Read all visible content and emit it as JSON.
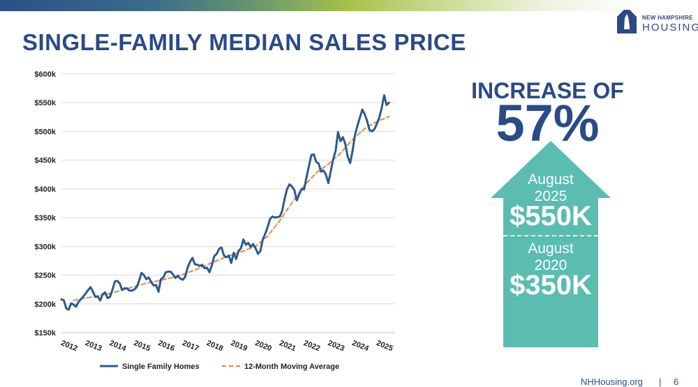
{
  "page_title": "SINGLE-FAMILY MEDIAN SALES PRICE",
  "logo": {
    "line1": "NEW HAMPSHIRE",
    "line2": "HOUSING"
  },
  "callout": {
    "label": "INCREASE OF",
    "value": "57%",
    "top_period_month": "August",
    "top_period_year": "2025",
    "top_value": "$550K",
    "bottom_period_month": "August",
    "bottom_period_year": "2020",
    "bottom_value": "$350K"
  },
  "footer": {
    "site": "NHHousing.org",
    "separator": "|",
    "page_number": "6"
  },
  "colors": {
    "brand": "#2b4a86",
    "accent": "#5bbcb0",
    "trend": "#e8844a",
    "grid": "#d9d9d9"
  },
  "chart_data": {
    "type": "line",
    "title": "",
    "xlabel": "",
    "ylabel": "",
    "ylim": [
      150000,
      600000
    ],
    "xlim": [
      2012,
      2025.75
    ],
    "grid": "horizontal",
    "legend_position": "bottom",
    "y_ticks": [
      {
        "value": 150000,
        "label": "$150k"
      },
      {
        "value": 200000,
        "label": "$200k"
      },
      {
        "value": 250000,
        "label": "$250k"
      },
      {
        "value": 300000,
        "label": "$300k"
      },
      {
        "value": 350000,
        "label": "$350k"
      },
      {
        "value": 400000,
        "label": "$400k"
      },
      {
        "value": 450000,
        "label": "$450k"
      },
      {
        "value": 500000,
        "label": "$500k"
      },
      {
        "value": 550000,
        "label": "$550k"
      },
      {
        "value": 600000,
        "label": "$600k"
      }
    ],
    "x_ticks": [
      {
        "value": 2012,
        "label": "2012"
      },
      {
        "value": 2013,
        "label": "2013"
      },
      {
        "value": 2014,
        "label": "2014"
      },
      {
        "value": 2015,
        "label": "2015"
      },
      {
        "value": 2016,
        "label": "2016"
      },
      {
        "value": 2017,
        "label": "2017"
      },
      {
        "value": 2018,
        "label": "2018"
      },
      {
        "value": 2019,
        "label": "2019"
      },
      {
        "value": 2020,
        "label": "2020"
      },
      {
        "value": 2021,
        "label": "2021"
      },
      {
        "value": 2022,
        "label": "2022"
      },
      {
        "value": 2023,
        "label": "2023"
      },
      {
        "value": 2024,
        "label": "2024"
      },
      {
        "value": 2025,
        "label": "2025"
      }
    ],
    "series": [
      {
        "name": "Single Family Homes",
        "style": "solid",
        "color": "#2b5a8e",
        "points": [
          [
            2012.0,
            208000
          ],
          [
            2012.1,
            206000
          ],
          [
            2012.2,
            192000
          ],
          [
            2012.3,
            190000
          ],
          [
            2012.4,
            201000
          ],
          [
            2012.5,
            199000
          ],
          [
            2012.6,
            195000
          ],
          [
            2012.7,
            203000
          ],
          [
            2012.8,
            208000
          ],
          [
            2012.9,
            213000
          ],
          [
            2013.0,
            218000
          ],
          [
            2013.1,
            224000
          ],
          [
            2013.2,
            229000
          ],
          [
            2013.3,
            221000
          ],
          [
            2013.4,
            212000
          ],
          [
            2013.5,
            213000
          ],
          [
            2013.6,
            206000
          ],
          [
            2013.7,
            217000
          ],
          [
            2013.8,
            220000
          ],
          [
            2013.9,
            210000
          ],
          [
            2014.0,
            212000
          ],
          [
            2014.1,
            224000
          ],
          [
            2014.2,
            239000
          ],
          [
            2014.3,
            240000
          ],
          [
            2014.4,
            236000
          ],
          [
            2014.5,
            224000
          ],
          [
            2014.6,
            227000
          ],
          [
            2014.7,
            227000
          ],
          [
            2014.8,
            223000
          ],
          [
            2014.9,
            223000
          ],
          [
            2015.0,
            225000
          ],
          [
            2015.1,
            229000
          ],
          [
            2015.2,
            240000
          ],
          [
            2015.3,
            254000
          ],
          [
            2015.4,
            250000
          ],
          [
            2015.5,
            243000
          ],
          [
            2015.6,
            246000
          ],
          [
            2015.7,
            238000
          ],
          [
            2015.8,
            232000
          ],
          [
            2015.9,
            233000
          ],
          [
            2016.0,
            221000
          ],
          [
            2016.1,
            243000
          ],
          [
            2016.2,
            246000
          ],
          [
            2016.3,
            255000
          ],
          [
            2016.4,
            256000
          ],
          [
            2016.5,
            256000
          ],
          [
            2016.6,
            251000
          ],
          [
            2016.7,
            245000
          ],
          [
            2016.8,
            249000
          ],
          [
            2016.9,
            244000
          ],
          [
            2017.0,
            242000
          ],
          [
            2017.1,
            247000
          ],
          [
            2017.2,
            263000
          ],
          [
            2017.3,
            273000
          ],
          [
            2017.4,
            280000
          ],
          [
            2017.5,
            269000
          ],
          [
            2017.6,
            268000
          ],
          [
            2017.7,
            266000
          ],
          [
            2017.8,
            268000
          ],
          [
            2017.9,
            262000
          ],
          [
            2018.0,
            263000
          ],
          [
            2018.1,
            255000
          ],
          [
            2018.2,
            267000
          ],
          [
            2018.3,
            283000
          ],
          [
            2018.4,
            287000
          ],
          [
            2018.5,
            296000
          ],
          [
            2018.6,
            298000
          ],
          [
            2018.7,
            284000
          ],
          [
            2018.8,
            281000
          ],
          [
            2018.9,
            284000
          ],
          [
            2019.0,
            271000
          ],
          [
            2019.1,
            289000
          ],
          [
            2019.2,
            278000
          ],
          [
            2019.3,
            292000
          ],
          [
            2019.4,
            297000
          ],
          [
            2019.5,
            312000
          ],
          [
            2019.6,
            303000
          ],
          [
            2019.7,
            306000
          ],
          [
            2019.8,
            299000
          ],
          [
            2019.9,
            304000
          ],
          [
            2020.0,
            297000
          ],
          [
            2020.1,
            287000
          ],
          [
            2020.2,
            292000
          ],
          [
            2020.3,
            312000
          ],
          [
            2020.4,
            322000
          ],
          [
            2020.5,
            334000
          ],
          [
            2020.6,
            348000
          ],
          [
            2020.7,
            352000
          ],
          [
            2020.8,
            350000
          ],
          [
            2020.9,
            351000
          ],
          [
            2021.0,
            352000
          ],
          [
            2021.1,
            362000
          ],
          [
            2021.2,
            383000
          ],
          [
            2021.3,
            400000
          ],
          [
            2021.4,
            408000
          ],
          [
            2021.5,
            404000
          ],
          [
            2021.6,
            398000
          ],
          [
            2021.7,
            380000
          ],
          [
            2021.8,
            391000
          ],
          [
            2021.9,
            400000
          ],
          [
            2022.0,
            399000
          ],
          [
            2022.1,
            420000
          ],
          [
            2022.2,
            440000
          ],
          [
            2022.3,
            459000
          ],
          [
            2022.4,
            460000
          ],
          [
            2022.5,
            447000
          ],
          [
            2022.6,
            444000
          ],
          [
            2022.7,
            430000
          ],
          [
            2022.8,
            432000
          ],
          [
            2022.9,
            425000
          ],
          [
            2023.0,
            410000
          ],
          [
            2023.1,
            431000
          ],
          [
            2023.2,
            452000
          ],
          [
            2023.3,
            466000
          ],
          [
            2023.4,
            499000
          ],
          [
            2023.5,
            483000
          ],
          [
            2023.6,
            490000
          ],
          [
            2023.7,
            478000
          ],
          [
            2023.8,
            456000
          ],
          [
            2023.9,
            445000
          ],
          [
            2024.0,
            467000
          ],
          [
            2024.1,
            494000
          ],
          [
            2024.2,
            510000
          ],
          [
            2024.3,
            524000
          ],
          [
            2024.4,
            538000
          ],
          [
            2024.5,
            530000
          ],
          [
            2024.6,
            518000
          ],
          [
            2024.7,
            502000
          ],
          [
            2024.8,
            500000
          ],
          [
            2024.9,
            504000
          ],
          [
            2025.0,
            513000
          ],
          [
            2025.1,
            524000
          ],
          [
            2025.2,
            541000
          ],
          [
            2025.3,
            563000
          ],
          [
            2025.4,
            546000
          ],
          [
            2025.5,
            550000
          ]
        ]
      },
      {
        "name": "12-Month Moving Average",
        "style": "dashed",
        "color": "#e8844a",
        "points": [
          [
            2012.5,
            206000
          ],
          [
            2013.0,
            210000
          ],
          [
            2013.5,
            214000
          ],
          [
            2014.0,
            218000
          ],
          [
            2014.5,
            224000
          ],
          [
            2015.0,
            230000
          ],
          [
            2015.5,
            236000
          ],
          [
            2016.0,
            240000
          ],
          [
            2016.5,
            245000
          ],
          [
            2017.0,
            251000
          ],
          [
            2017.5,
            259000
          ],
          [
            2018.0,
            268000
          ],
          [
            2018.5,
            277000
          ],
          [
            2019.0,
            285000
          ],
          [
            2019.5,
            292000
          ],
          [
            2020.0,
            300000
          ],
          [
            2020.5,
            318000
          ],
          [
            2021.0,
            345000
          ],
          [
            2021.5,
            376000
          ],
          [
            2022.0,
            405000
          ],
          [
            2022.5,
            428000
          ],
          [
            2023.0,
            443000
          ],
          [
            2023.5,
            462000
          ],
          [
            2024.0,
            486000
          ],
          [
            2024.5,
            505000
          ],
          [
            2025.0,
            517000
          ],
          [
            2025.5,
            526000
          ]
        ]
      }
    ]
  }
}
